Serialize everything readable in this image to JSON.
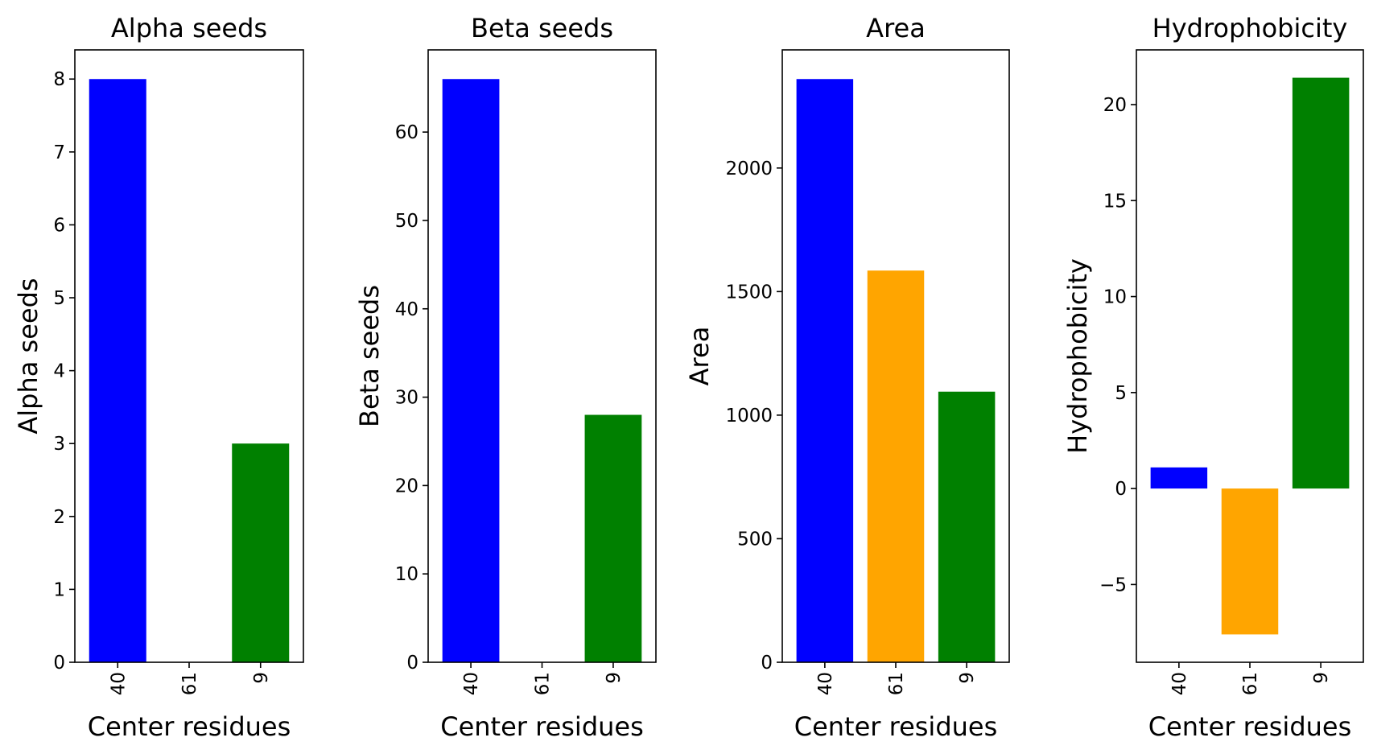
{
  "chart_data": [
    {
      "type": "bar",
      "title": "Alpha seeds",
      "xlabel": "Center residues",
      "ylabel": "Alpha seeds",
      "categories": [
        "40",
        "61",
        "9"
      ],
      "values": [
        8,
        0,
        3
      ],
      "colors": [
        "#0000ff",
        "#ffa500",
        "#008000"
      ],
      "ylim": [
        0,
        8.4
      ],
      "yticks": [
        0,
        1,
        2,
        3,
        4,
        5,
        6,
        7,
        8
      ],
      "ytick_labels": [
        "0",
        "1",
        "2",
        "3",
        "4",
        "5",
        "6",
        "7",
        "8"
      ],
      "grid": false
    },
    {
      "type": "bar",
      "title": "Beta seeds",
      "xlabel": "Center residues",
      "ylabel": "Beta seeds",
      "categories": [
        "40",
        "61",
        "9"
      ],
      "values": [
        66,
        0,
        28
      ],
      "colors": [
        "#0000ff",
        "#ffa500",
        "#008000"
      ],
      "ylim": [
        0,
        69.3
      ],
      "yticks": [
        0,
        10,
        20,
        30,
        40,
        50,
        60
      ],
      "ytick_labels": [
        "0",
        "10",
        "20",
        "30",
        "40",
        "50",
        "60"
      ],
      "grid": false
    },
    {
      "type": "bar",
      "title": "Area",
      "xlabel": "Center residues",
      "ylabel": "Area",
      "categories": [
        "40",
        "61",
        "9"
      ],
      "values": [
        2360,
        1585,
        1095
      ],
      "colors": [
        "#0000ff",
        "#ffa500",
        "#008000"
      ],
      "ylim": [
        0,
        2478
      ],
      "yticks": [
        0,
        500,
        1000,
        1500,
        2000
      ],
      "ytick_labels": [
        "0",
        "500",
        "1000",
        "1500",
        "2000"
      ],
      "grid": false
    },
    {
      "type": "bar",
      "title": "Hydrophobicity",
      "xlabel": "Center residues",
      "ylabel": "Hydrophobicity",
      "categories": [
        "40",
        "61",
        "9"
      ],
      "values": [
        1.1,
        -7.6,
        21.4
      ],
      "colors": [
        "#0000ff",
        "#ffa500",
        "#008000"
      ],
      "ylim": [
        -9.05,
        22.85
      ],
      "yticks": [
        -5,
        0,
        5,
        10,
        15,
        20
      ],
      "ytick_labels": [
        "−5",
        "0",
        "5",
        "10",
        "15",
        "20"
      ],
      "grid": false
    }
  ]
}
